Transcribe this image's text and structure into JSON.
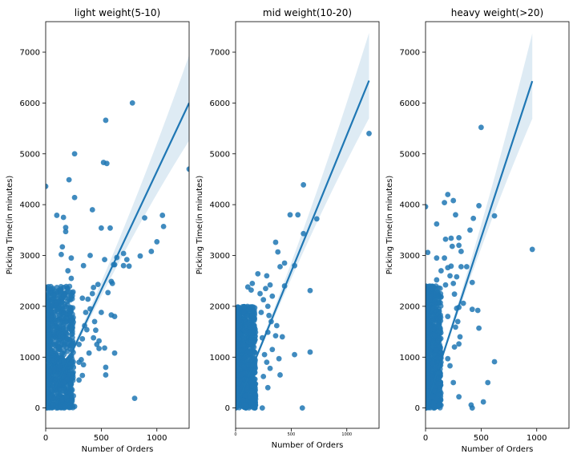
{
  "chart_data": [
    {
      "type": "scatter",
      "title": "light weight(5-10)",
      "xlabel": "Number of Orders",
      "ylabel": "Picking Time(in minutes)",
      "xlim": [
        0,
        1290
      ],
      "ylim": [
        -400,
        7600
      ],
      "xticks": [
        0,
        500,
        1000
      ],
      "yticks": [
        0,
        1000,
        2000,
        3000,
        4000,
        5000,
        6000,
        7000
      ],
      "xtick_small": false,
      "regression": {
        "x0": 0,
        "y0": 0,
        "x1": 1290,
        "y1": 6000
      },
      "cluster": {
        "xmax": 250,
        "ymax": 2400
      },
      "points": [
        [
          780,
          6000
        ],
        [
          540,
          5660
        ],
        [
          520,
          4830
        ],
        [
          550,
          4810
        ],
        [
          260,
          5000
        ],
        [
          0,
          4360
        ],
        [
          210,
          4490
        ],
        [
          260,
          4140
        ],
        [
          420,
          3900
        ],
        [
          1290,
          4700
        ],
        [
          100,
          3790
        ],
        [
          160,
          3750
        ],
        [
          500,
          3540
        ],
        [
          580,
          3540
        ],
        [
          180,
          3550
        ],
        [
          180,
          3470
        ],
        [
          890,
          3740
        ],
        [
          1050,
          3790
        ],
        [
          1060,
          3570
        ],
        [
          700,
          3040
        ],
        [
          640,
          2960
        ],
        [
          730,
          2920
        ],
        [
          850,
          2990
        ],
        [
          950,
          3080
        ],
        [
          1000,
          3270
        ],
        [
          530,
          2920
        ],
        [
          610,
          2820
        ],
        [
          620,
          2820
        ],
        [
          700,
          2800
        ],
        [
          750,
          2790
        ],
        [
          150,
          3170
        ],
        [
          140,
          3020
        ],
        [
          230,
          2950
        ],
        [
          400,
          3000
        ],
        [
          340,
          2800
        ],
        [
          590,
          2490
        ],
        [
          600,
          2450
        ],
        [
          470,
          2430
        ],
        [
          430,
          2370
        ],
        [
          420,
          2250
        ],
        [
          560,
          2270
        ],
        [
          380,
          2140
        ],
        [
          330,
          2160
        ],
        [
          400,
          1950
        ],
        [
          360,
          1880
        ],
        [
          500,
          1880
        ],
        [
          590,
          1830
        ],
        [
          620,
          1800
        ],
        [
          440,
          1700
        ],
        [
          350,
          1620
        ],
        [
          370,
          1540
        ],
        [
          450,
          1530
        ],
        [
          330,
          1360
        ],
        [
          480,
          1320
        ],
        [
          430,
          1380
        ],
        [
          300,
          1250
        ],
        [
          460,
          1250
        ],
        [
          240,
          1230
        ],
        [
          480,
          1170
        ],
        [
          530,
          1180
        ],
        [
          390,
          1080
        ],
        [
          620,
          1080
        ],
        [
          320,
          950
        ],
        [
          340,
          850
        ],
        [
          300,
          900
        ],
        [
          250,
          800
        ],
        [
          540,
          800
        ],
        [
          540,
          650
        ],
        [
          330,
          640
        ],
        [
          300,
          550
        ],
        [
          800,
          190
        ],
        [
          260,
          30
        ],
        [
          100,
          1600
        ],
        [
          200,
          2700
        ],
        [
          230,
          2550
        ]
      ]
    },
    {
      "type": "scatter",
      "title": "mid weight(10-20)",
      "xlabel": "Number of Orders",
      "ylabel": "Picking Time(in minutes)",
      "xlim": [
        0,
        1290
      ],
      "ylim": [
        -400,
        7600
      ],
      "xticks": [
        0,
        500,
        1000
      ],
      "yticks": [
        0,
        1000,
        2000,
        3000,
        4000,
        5000,
        6000,
        7000
      ],
      "xtick_small": true,
      "regression": {
        "x0": 0,
        "y0": 0,
        "x1": 1200,
        "y1": 6440
      },
      "cluster": {
        "xmax": 180,
        "ymax": 2000
      },
      "points": [
        [
          1200,
          5400
        ],
        [
          610,
          4390
        ],
        [
          490,
          3800
        ],
        [
          560,
          3800
        ],
        [
          730,
          3720
        ],
        [
          610,
          3430
        ],
        [
          360,
          3260
        ],
        [
          380,
          3070
        ],
        [
          440,
          2850
        ],
        [
          400,
          2780
        ],
        [
          530,
          2800
        ],
        [
          670,
          2310
        ],
        [
          440,
          2400
        ],
        [
          200,
          2640
        ],
        [
          280,
          2600
        ],
        [
          310,
          2420
        ],
        [
          270,
          2350
        ],
        [
          140,
          2320
        ],
        [
          220,
          2250
        ],
        [
          330,
          2200
        ],
        [
          250,
          2130
        ],
        [
          290,
          2000
        ],
        [
          230,
          1880
        ],
        [
          300,
          1820
        ],
        [
          320,
          1700
        ],
        [
          370,
          1620
        ],
        [
          290,
          1490
        ],
        [
          360,
          1420
        ],
        [
          420,
          1400
        ],
        [
          240,
          1380
        ],
        [
          330,
          1150
        ],
        [
          260,
          1050
        ],
        [
          530,
          1050
        ],
        [
          670,
          1100
        ],
        [
          390,
          970
        ],
        [
          280,
          900
        ],
        [
          310,
          780
        ],
        [
          400,
          650
        ],
        [
          250,
          620
        ],
        [
          290,
          400
        ],
        [
          600,
          0
        ],
        [
          240,
          0
        ],
        [
          110,
          2380
        ],
        [
          150,
          2450
        ]
      ]
    },
    {
      "type": "scatter",
      "title": "heavy weight(>20)",
      "xlabel": "Number of Orders",
      "ylabel": "Picking Time(in minutes)",
      "xlim": [
        0,
        1290
      ],
      "ylim": [
        -400,
        7600
      ],
      "xticks": [
        0,
        500,
        1000
      ],
      "yticks": [
        0,
        1000,
        2000,
        3000,
        4000,
        5000,
        6000,
        7000
      ],
      "xtick_small": false,
      "regression": {
        "x0": 0,
        "y0": 0,
        "x1": 960,
        "y1": 6430
      },
      "cluster": {
        "xmax": 140,
        "ymax": 2400
      },
      "points": [
        [
          500,
          5520
        ],
        [
          0,
          3960
        ],
        [
          170,
          4040
        ],
        [
          200,
          4200
        ],
        [
          250,
          4080
        ],
        [
          480,
          3980
        ],
        [
          620,
          3780
        ],
        [
          100,
          3620
        ],
        [
          270,
          3800
        ],
        [
          430,
          3730
        ],
        [
          400,
          3500
        ],
        [
          180,
          3320
        ],
        [
          230,
          3340
        ],
        [
          300,
          3350
        ],
        [
          240,
          3180
        ],
        [
          300,
          3200
        ],
        [
          320,
          3080
        ],
        [
          20,
          3060
        ],
        [
          100,
          2950
        ],
        [
          170,
          2950
        ],
        [
          200,
          2760
        ],
        [
          230,
          2790
        ],
        [
          320,
          2780
        ],
        [
          370,
          2780
        ],
        [
          140,
          2700
        ],
        [
          220,
          2600
        ],
        [
          280,
          2580
        ],
        [
          420,
          2470
        ],
        [
          100,
          2520
        ],
        [
          250,
          2450
        ],
        [
          180,
          2420
        ],
        [
          260,
          2240
        ],
        [
          340,
          2060
        ],
        [
          300,
          1980
        ],
        [
          280,
          1960
        ],
        [
          420,
          1940
        ],
        [
          470,
          1920
        ],
        [
          200,
          1800
        ],
        [
          290,
          1700
        ],
        [
          270,
          1590
        ],
        [
          480,
          1570
        ],
        [
          310,
          1400
        ],
        [
          300,
          1260
        ],
        [
          260,
          1200
        ],
        [
          200,
          970
        ],
        [
          220,
          830
        ],
        [
          620,
          910
        ],
        [
          250,
          500
        ],
        [
          560,
          500
        ],
        [
          300,
          220
        ],
        [
          410,
          60
        ],
        [
          420,
          0
        ],
        [
          520,
          120
        ],
        [
          960,
          3120
        ],
        [
          120,
          2200
        ]
      ]
    }
  ]
}
